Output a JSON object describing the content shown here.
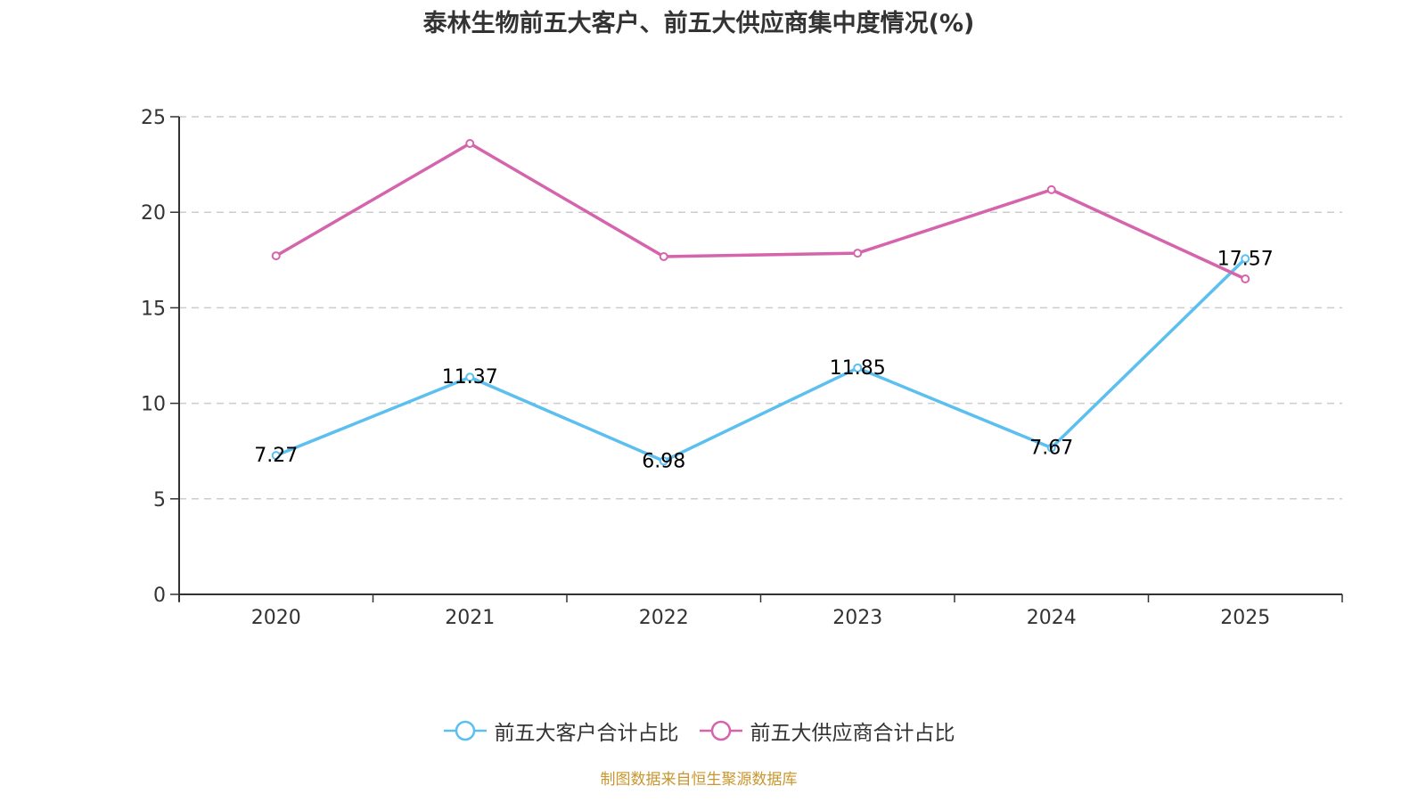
{
  "chart_data": {
    "type": "line",
    "title": "泰林生物前五大客户、前五大供应商集中度情况(%)",
    "xlabel": "",
    "ylabel": "",
    "categories": [
      "2020",
      "2021",
      "2022",
      "2023",
      "2024",
      "2025"
    ],
    "ylim": [
      0,
      25
    ],
    "yticks": [
      "0",
      "5",
      "10",
      "15",
      "20",
      "25"
    ],
    "grid": true,
    "legend_position": "bottom",
    "series": [
      {
        "name": "前五大客户合计占比",
        "color": "#5bbff0",
        "values": [
          7.27,
          11.37,
          6.98,
          11.85,
          7.67,
          17.57
        ],
        "labels": [
          "7.27",
          "11.37",
          "6.98",
          "11.85",
          "7.67",
          "17.57"
        ],
        "show_labels": true
      },
      {
        "name": "前五大供应商合计占比",
        "color": "#d564ad",
        "values": [
          17.72,
          23.6,
          17.68,
          17.86,
          21.18,
          16.51
        ],
        "labels": [],
        "show_labels": false
      }
    ]
  },
  "legend": {
    "items": [
      {
        "label": "前五大客户合计占比",
        "color": "#5bbff0"
      },
      {
        "label": "前五大供应商合计占比",
        "color": "#d564ad"
      }
    ]
  },
  "footer": {
    "source": "制图数据来自恒生聚源数据库"
  }
}
